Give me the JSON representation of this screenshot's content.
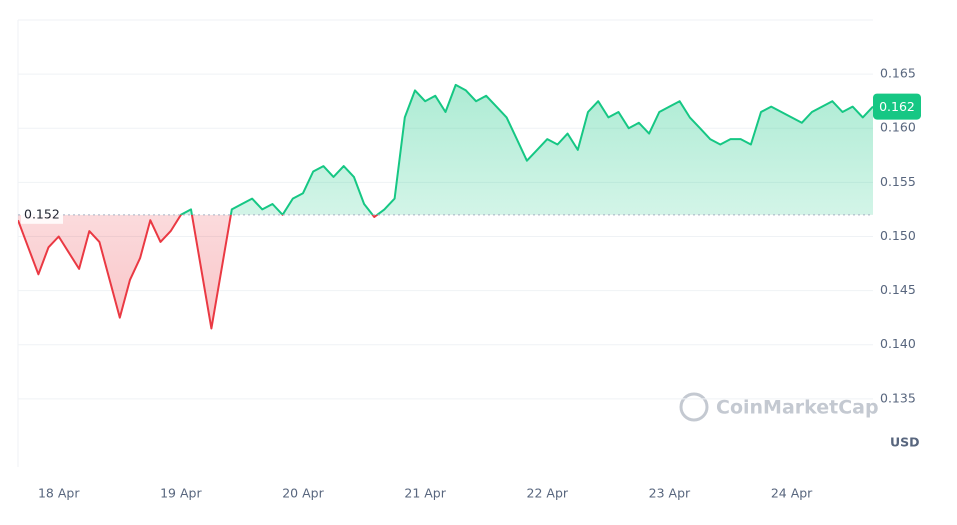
{
  "chart_data": {
    "type": "line",
    "categories": [
      null,
      null,
      null,
      null,
      "18 Apr",
      null,
      null,
      null,
      null,
      null,
      null,
      null,
      null,
      null,
      null,
      null,
      "19 Apr",
      null,
      null,
      null,
      null,
      null,
      null,
      null,
      null,
      null,
      null,
      null,
      "20 Apr",
      null,
      null,
      null,
      null,
      null,
      null,
      null,
      null,
      null,
      null,
      null,
      "21 Apr",
      null,
      null,
      null,
      null,
      null,
      null,
      null,
      null,
      null,
      null,
      null,
      "22 Apr",
      null,
      null,
      null,
      null,
      null,
      null,
      null,
      null,
      null,
      null,
      null,
      "23 Apr",
      null,
      null,
      null,
      null,
      null,
      null,
      null,
      null,
      null,
      null,
      null,
      "24 Apr",
      null,
      null,
      null,
      null,
      null,
      null,
      null,
      null
    ],
    "series": [
      {
        "values": [
          0.1515,
          0.149,
          0.1465,
          0.149,
          0.15,
          0.1485,
          0.147,
          0.1505,
          0.1495,
          0.146,
          0.1425,
          0.146,
          0.148,
          0.1515,
          0.1495,
          0.1505,
          0.152,
          0.1525,
          0.147,
          0.1415,
          0.147,
          0.1525,
          0.153,
          0.1535,
          0.1525,
          0.153,
          0.152,
          0.1535,
          0.154,
          0.156,
          0.1565,
          0.1555,
          0.1565,
          0.1555,
          0.153,
          0.1518,
          0.1525,
          0.1535,
          0.161,
          0.1635,
          0.1625,
          0.163,
          0.1615,
          0.164,
          0.1635,
          0.1625,
          0.163,
          0.162,
          0.161,
          0.159,
          0.157,
          0.158,
          0.159,
          0.1585,
          0.1595,
          0.158,
          0.1615,
          0.1625,
          0.161,
          0.1615,
          0.16,
          0.1605,
          0.1595,
          0.1615,
          0.162,
          0.1625,
          0.161,
          0.16,
          0.159,
          0.1585,
          0.159,
          0.159,
          0.1585,
          0.1615,
          0.162,
          0.1615,
          0.161,
          0.1605,
          0.1615,
          0.162,
          0.1625,
          0.1615,
          0.162,
          0.161,
          0.162
        ]
      }
    ],
    "baseline": 0.152,
    "up_color": "#16c784",
    "down_color": "#ea3943",
    "ylim": [
      0.1287,
      0.17
    ],
    "yticks": [
      0.135,
      {
        "value": 0.14,
        "label": "0.140"
      },
      0.145,
      {
        "value": 0.15,
        "label": "0.150"
      },
      0.155,
      {
        "value": 0.16,
        "label": "0.160"
      },
      0.165
    ],
    "grid": true,
    "unit": "USD",
    "watermark": "CoinMarketCap"
  }
}
